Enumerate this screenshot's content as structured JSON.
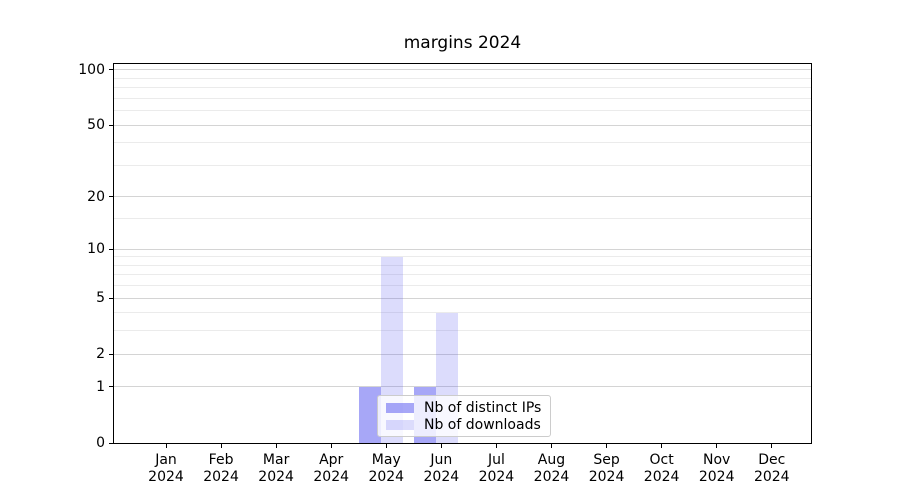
{
  "chart_data": {
    "type": "bar",
    "title": "margins 2024",
    "categories": [
      "Jan",
      "Feb",
      "Mar",
      "Apr",
      "May",
      "Jun",
      "Jul",
      "Aug",
      "Sep",
      "Oct",
      "Nov",
      "Dec"
    ],
    "year_label": "2024",
    "series": [
      {
        "name": "Nb of distinct IPs",
        "values": [
          0,
          0,
          0,
          0,
          1,
          1,
          0,
          0,
          0,
          0,
          0,
          0
        ],
        "color": "rgba(80,80,240,0.5)"
      },
      {
        "name": "Nb of downloads",
        "values": [
          0,
          0,
          0,
          0,
          9,
          4,
          0,
          0,
          0,
          0,
          0,
          0
        ],
        "color": "rgba(80,80,240,0.2)"
      }
    ],
    "yticks": [
      0,
      1,
      2,
      5,
      10,
      20,
      50,
      100
    ],
    "minor_yticks": [
      3,
      4,
      6,
      7,
      8,
      9,
      15,
      30,
      40,
      60,
      70,
      80,
      90
    ],
    "scale": "log1p",
    "ylim": [
      0,
      110
    ],
    "grid": "horizontal",
    "legend_position": "lower-center"
  }
}
